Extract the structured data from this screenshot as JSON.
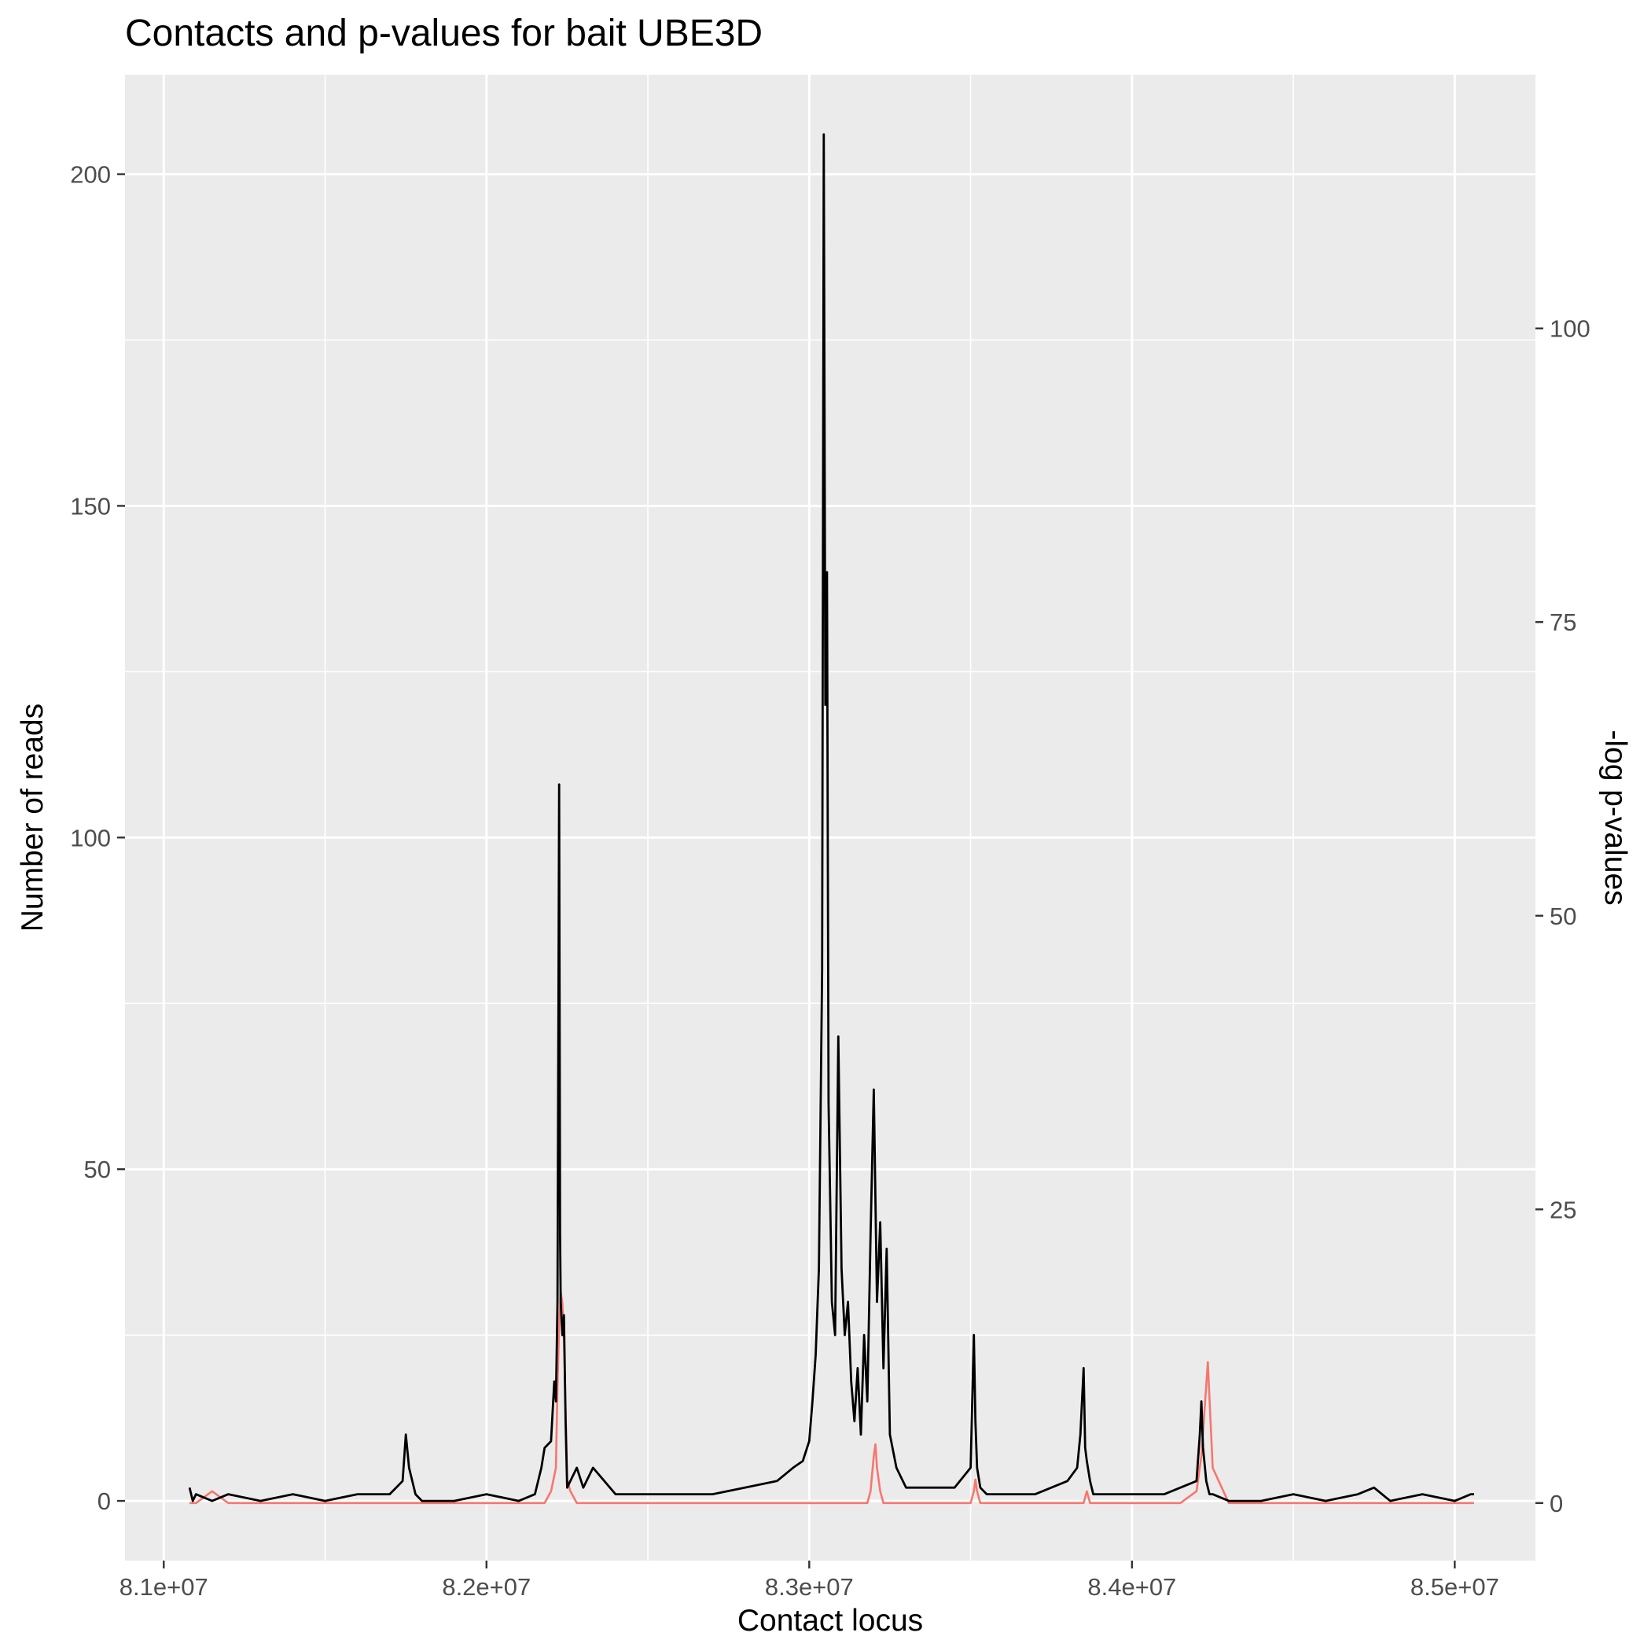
{
  "chart_data": {
    "type": "line",
    "title": "Contacts and p-values for bait UBE3D",
    "xlabel": "Contact locus",
    "ylabel": "Number of reads",
    "y2label": "-log p-values",
    "xlim": [
      80880000,
      85250000
    ],
    "ylim": [
      -9,
      215
    ],
    "y2lim": [
      -4.9,
      121.6
    ],
    "x_ticks": [
      81000000,
      82000000,
      83000000,
      84000000,
      85000000
    ],
    "x_tick_labels": [
      "8.1e+07",
      "8.2e+07",
      "8.3e+07",
      "8.4e+07",
      "8.5e+07"
    ],
    "y_ticks": [
      0,
      50,
      100,
      150,
      200
    ],
    "y_tick_labels": [
      "0",
      "50",
      "100",
      "150",
      "200"
    ],
    "y2_ticks": [
      0,
      25,
      50,
      75,
      100
    ],
    "y2_tick_labels": [
      "0",
      "25",
      "50",
      "75",
      "100"
    ],
    "grid": true,
    "background": "#ebebeb",
    "series": [
      {
        "axis": "right",
        "color": "#f8766d",
        "x": [
          81080000,
          81100000,
          81150000,
          81200000,
          81400000,
          81600000,
          81800000,
          82000000,
          82150000,
          82180000,
          82200000,
          82215000,
          82220000,
          82225000,
          82230000,
          82235000,
          82240000,
          82245000,
          82250000,
          82260000,
          82280000,
          82300000,
          82400000,
          82600000,
          82800000,
          82950000,
          83000000,
          83030000,
          83050000,
          83060000,
          83100000,
          83150000,
          83180000,
          83190000,
          83200000,
          83205000,
          83210000,
          83220000,
          83230000,
          83250000,
          83300000,
          83500000,
          83510000,
          83515000,
          83520000,
          83530000,
          83600000,
          83800000,
          83850000,
          83860000,
          83870000,
          83900000,
          84000000,
          84150000,
          84200000,
          84215000,
          84225000,
          84235000,
          84250000,
          84300000,
          84600000,
          85000000,
          85060000
        ],
        "y": [
          0,
          0,
          1,
          0,
          0,
          0,
          0,
          0,
          0,
          0,
          1,
          3,
          10,
          15,
          18,
          17,
          14,
          8,
          2,
          1,
          0,
          0,
          0,
          0,
          0,
          0,
          0,
          0,
          0,
          0,
          0,
          0,
          0,
          1,
          4,
          5,
          3,
          1,
          0,
          0,
          0,
          0,
          1,
          2,
          1,
          0,
          0,
          0,
          0,
          1,
          0,
          0,
          0,
          0,
          1,
          4,
          8,
          12,
          3,
          0,
          0,
          0,
          0
        ]
      },
      {
        "axis": "left",
        "color": "#000000",
        "x": [
          81080000,
          81090000,
          81100000,
          81150000,
          81200000,
          81300000,
          81400000,
          81500000,
          81600000,
          81700000,
          81740000,
          81750000,
          81760000,
          81780000,
          81800000,
          81900000,
          82000000,
          82100000,
          82150000,
          82170000,
          82180000,
          82200000,
          82210000,
          82215000,
          82220000,
          82222000,
          82225000,
          82228000,
          82230000,
          82235000,
          82240000,
          82245000,
          82250000,
          82260000,
          82280000,
          82300000,
          82330000,
          82400000,
          82500000,
          82600000,
          82700000,
          82800000,
          82900000,
          82950000,
          82980000,
          83000000,
          83010000,
          83020000,
          83030000,
          83040000,
          83045000,
          83050000,
          83055000,
          83060000,
          83070000,
          83080000,
          83090000,
          83100000,
          83110000,
          83120000,
          83130000,
          83140000,
          83150000,
          83160000,
          83170000,
          83180000,
          83190000,
          83200000,
          83210000,
          83220000,
          83230000,
          83240000,
          83250000,
          83270000,
          83300000,
          83350000,
          83450000,
          83500000,
          83510000,
          83515000,
          83520000,
          83530000,
          83550000,
          83600000,
          83700000,
          83800000,
          83830000,
          83840000,
          83850000,
          83855000,
          83860000,
          83870000,
          83880000,
          83900000,
          84000000,
          84100000,
          84150000,
          84200000,
          84210000,
          84215000,
          84220000,
          84230000,
          84240000,
          84250000,
          84300000,
          84400000,
          84500000,
          84600000,
          84700000,
          84750000,
          84800000,
          84900000,
          85000000,
          85050000,
          85060000
        ],
        "y": [
          2,
          0,
          1,
          0,
          1,
          0,
          1,
          0,
          1,
          1,
          3,
          10,
          5,
          1,
          0,
          0,
          1,
          0,
          1,
          5,
          8,
          9,
          18,
          15,
          30,
          60,
          108,
          40,
          30,
          25,
          28,
          12,
          2,
          3,
          5,
          2,
          5,
          1,
          1,
          1,
          1,
          2,
          3,
          5,
          6,
          9,
          15,
          22,
          35,
          80,
          206,
          120,
          140,
          60,
          30,
          25,
          70,
          35,
          25,
          30,
          18,
          12,
          20,
          10,
          25,
          15,
          40,
          62,
          30,
          42,
          20,
          38,
          10,
          5,
          2,
          2,
          2,
          5,
          25,
          12,
          5,
          2,
          1,
          1,
          1,
          3,
          5,
          10,
          20,
          8,
          6,
          3,
          1,
          1,
          1,
          1,
          2,
          3,
          10,
          15,
          8,
          3,
          1,
          1,
          0,
          0,
          1,
          0,
          1,
          2,
          0,
          1,
          0,
          1,
          1
        ]
      }
    ]
  }
}
